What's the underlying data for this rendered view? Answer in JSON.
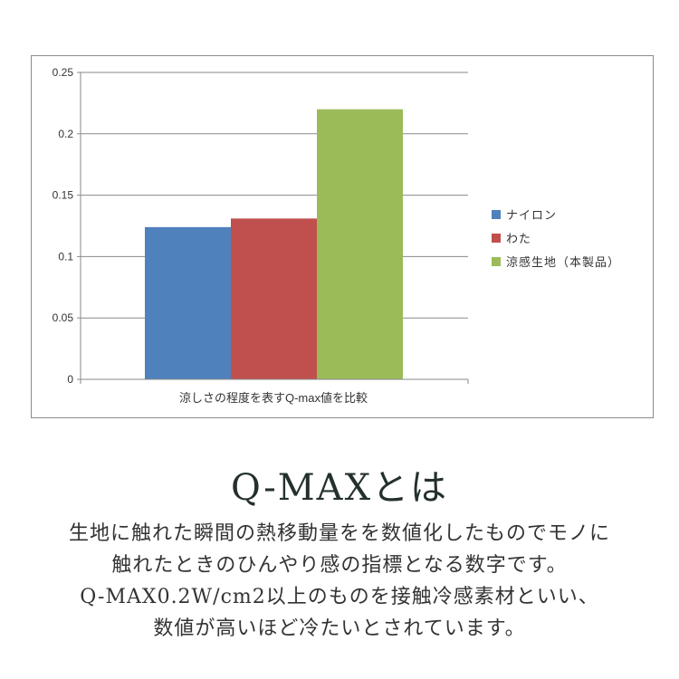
{
  "chart_data": {
    "type": "bar",
    "categories": [
      ""
    ],
    "xlabel": "涼しさの程度を表すQ-max値を比較",
    "ylim": [
      0,
      0.25
    ],
    "yticks": [
      "0",
      "0.05",
      "0.1",
      "0.15",
      "0.2",
      "0.25"
    ],
    "grid": true,
    "legend_position": "right",
    "series": [
      {
        "name": "ナイロン",
        "values": [
          0.124
        ],
        "color": "#4f81bd"
      },
      {
        "name": "わた",
        "values": [
          0.131
        ],
        "color": "#c0504d"
      },
      {
        "name": "涼感生地（本製品）",
        "values": [
          0.22
        ],
        "color": "#9bbb59"
      }
    ]
  },
  "heading": "Q-MAXとは",
  "body_lines": [
    "生地に触れた瞬間の熱移動量をを数値化したものでモノに",
    "触れたときのひんやり感の指標となる数字です。",
    "Q-MAX0.2W/cm2以上のものを接触冷感素材といい、",
    "数値が高いほど冷たいとされています。"
  ]
}
